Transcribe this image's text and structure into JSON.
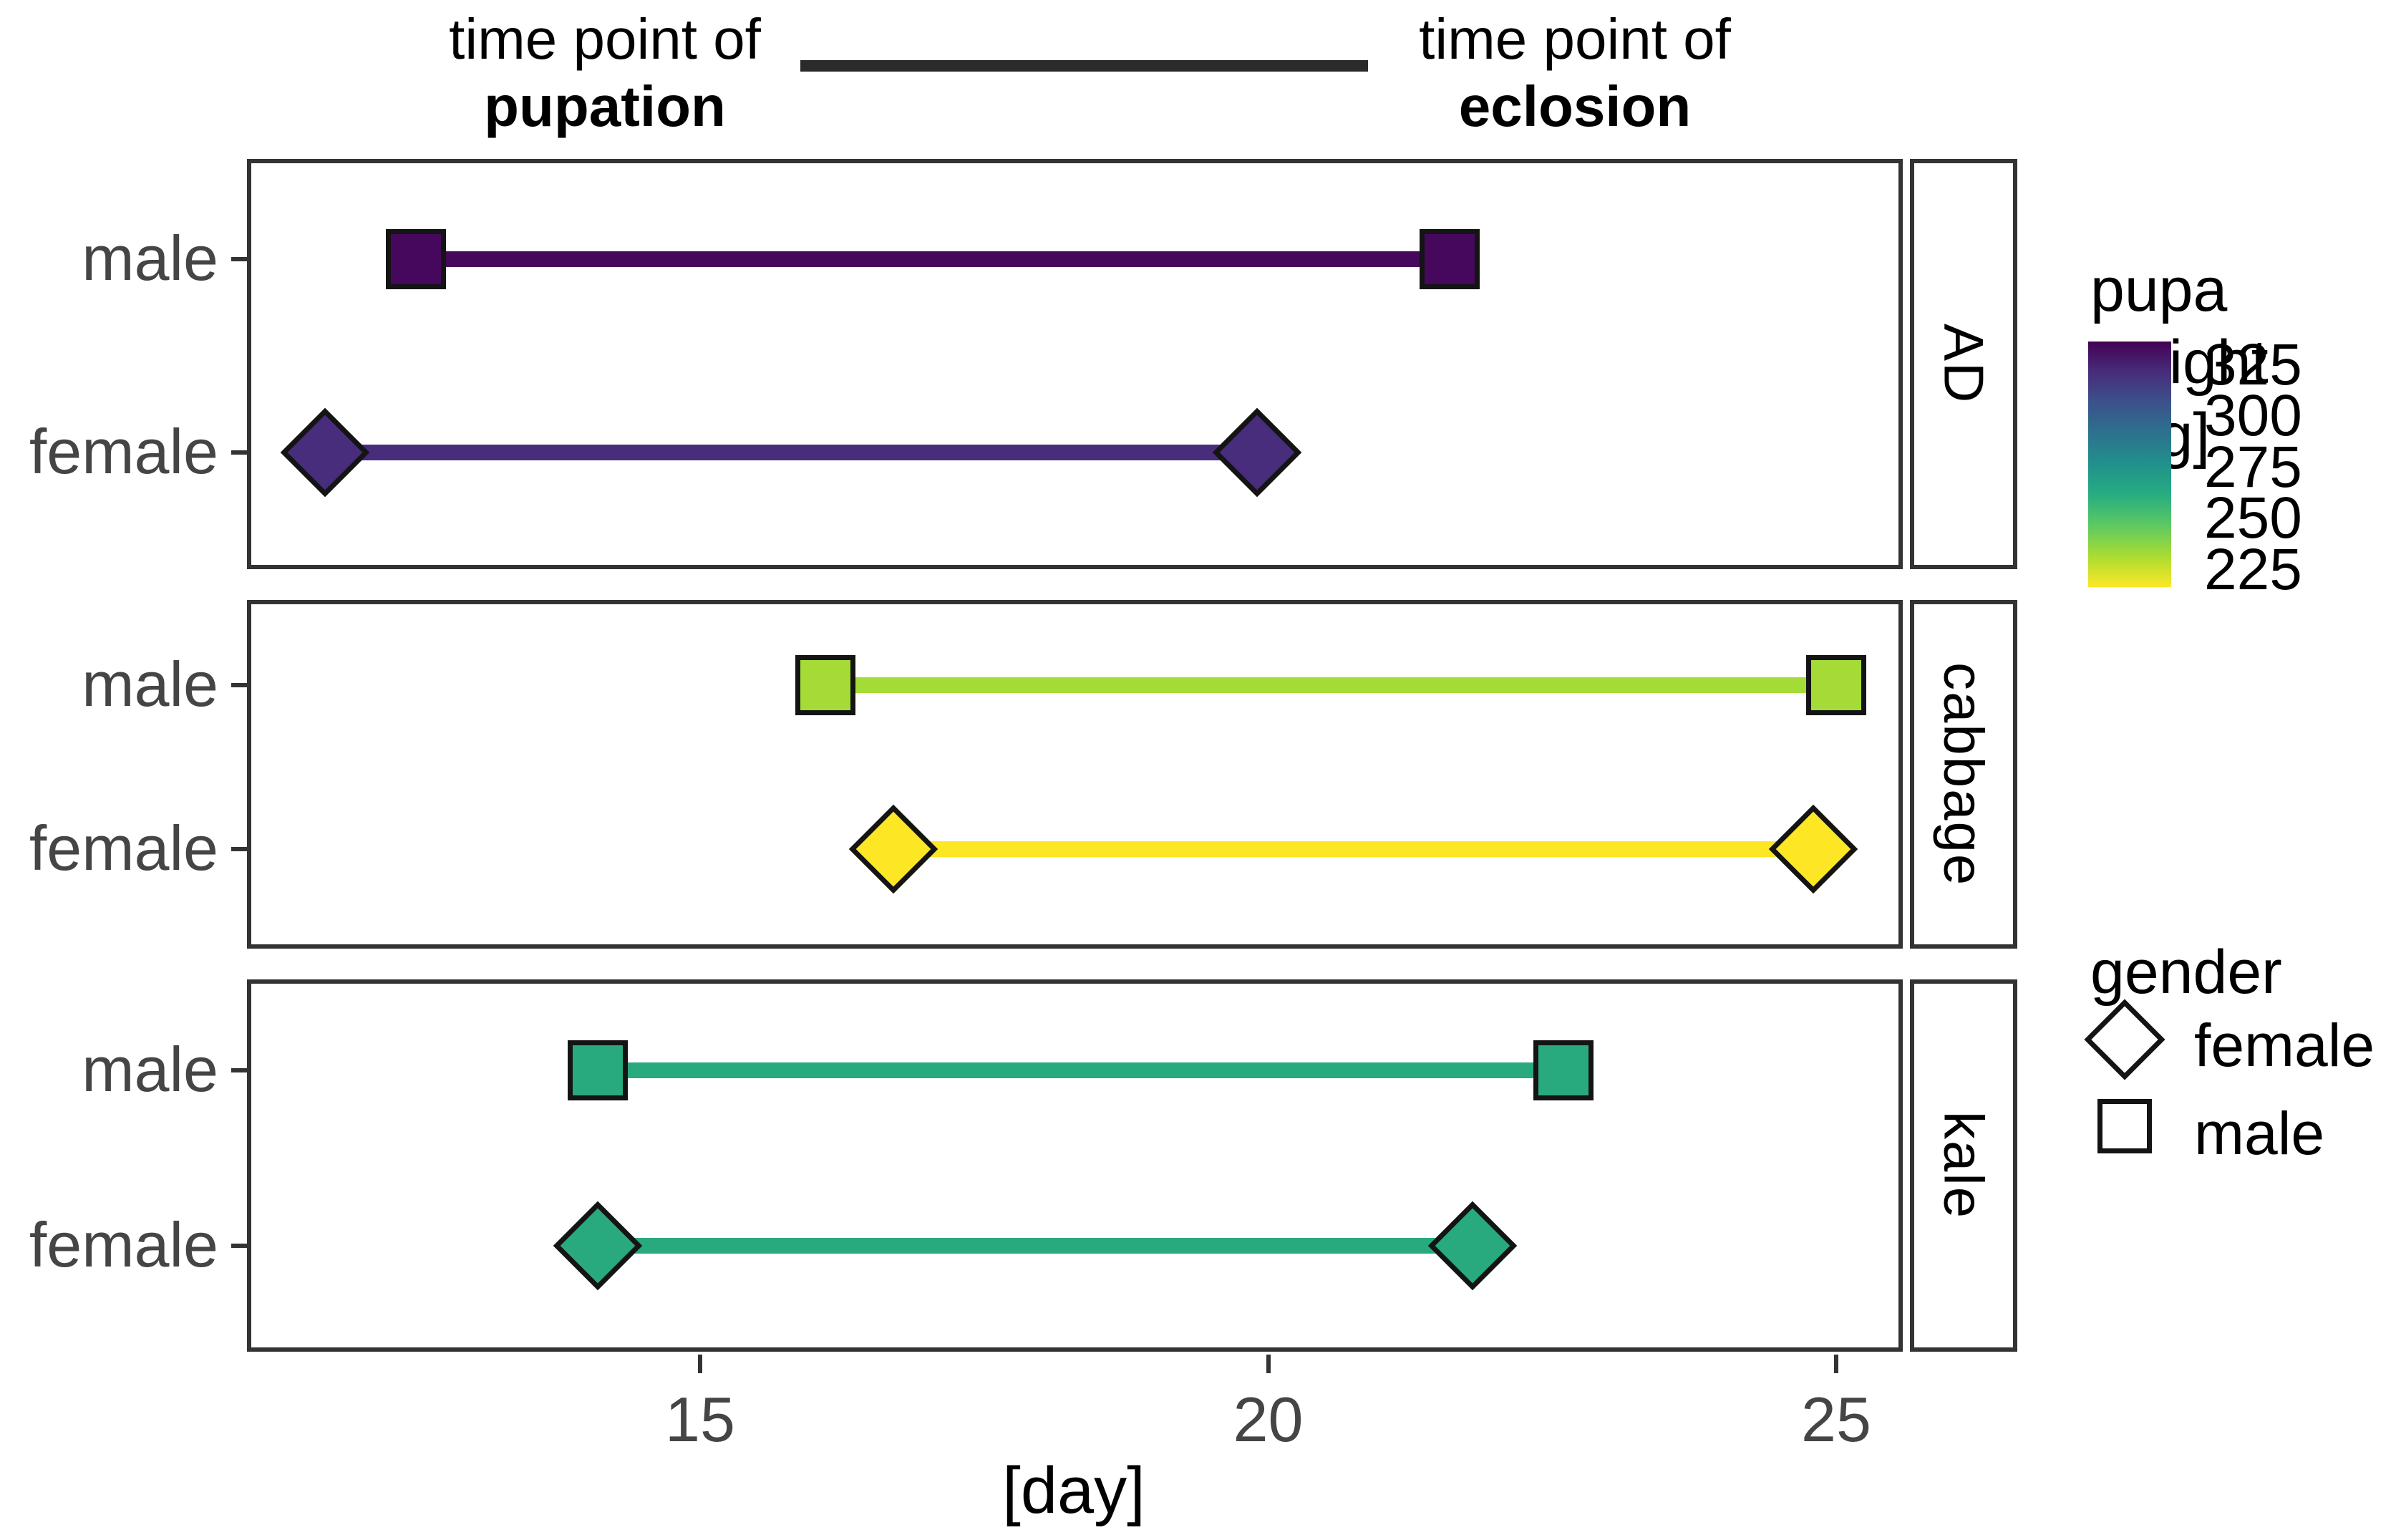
{
  "header": {
    "left_line1": "time point of",
    "left_line2": "pupation",
    "right_line1": "time point of",
    "right_line2": "eclosion"
  },
  "axes": {
    "x_title": "[day]",
    "x_major_ticks": [
      15,
      20,
      25
    ],
    "x_minor_ticks": [
      12.5,
      17.5,
      22.5
    ],
    "x_domain": [
      11.0,
      25.8
    ],
    "y_categories": [
      "male",
      "female"
    ]
  },
  "facets": [
    "AD",
    "cabbage",
    "kale"
  ],
  "legend": {
    "colorbar": {
      "title_line1": "pupa",
      "title_line2": "weight [mg]",
      "tick_labels": [
        325,
        300,
        275,
        250,
        225
      ],
      "domain": [
        215.5,
        335.5
      ],
      "viridis_stops_bottom_to_top": [
        "#fde725",
        "#aadc32",
        "#5ec962",
        "#27ad81",
        "#21918c",
        "#2c728e",
        "#3b528b",
        "#472d7b",
        "#440154"
      ]
    },
    "gender": {
      "title": "gender",
      "items": [
        {
          "shape": "diamond",
          "label": "female"
        },
        {
          "shape": "square",
          "label": "male"
        }
      ]
    }
  },
  "chart_data": {
    "type": "dumbbell-range",
    "description": "Time point of pupation to time point of eclosion per diet facet and gender; color encodes pupa weight [mg] (viridis, reversed).",
    "x_unit": "day",
    "series": [
      {
        "facet": "AD",
        "gender": "male",
        "shape": "square",
        "pupation_day": 12.5,
        "eclosion_day": 21.6,
        "color": "#46085c",
        "pupa_weight_mg_approx": 332
      },
      {
        "facet": "AD",
        "gender": "female",
        "shape": "diamond",
        "pupation_day": 11.7,
        "eclosion_day": 19.9,
        "color": "#472d7b",
        "pupa_weight_mg_approx": 320
      },
      {
        "facet": "cabbage",
        "gender": "male",
        "shape": "square",
        "pupation_day": 16.1,
        "eclosion_day": 25.0,
        "color": "#a5db36",
        "pupa_weight_mg_approx": 228
      },
      {
        "facet": "cabbage",
        "gender": "female",
        "shape": "diamond",
        "pupation_day": 16.7,
        "eclosion_day": 24.8,
        "color": "#fde725",
        "pupa_weight_mg_approx": 216
      },
      {
        "facet": "kale",
        "gender": "male",
        "shape": "square",
        "pupation_day": 14.1,
        "eclosion_day": 22.6,
        "color": "#29a97e",
        "pupa_weight_mg_approx": 258
      },
      {
        "facet": "kale",
        "gender": "female",
        "shape": "diamond",
        "pupation_day": 14.1,
        "eclosion_day": 21.8,
        "color": "#29a97e",
        "pupa_weight_mg_approx": 258
      }
    ]
  }
}
